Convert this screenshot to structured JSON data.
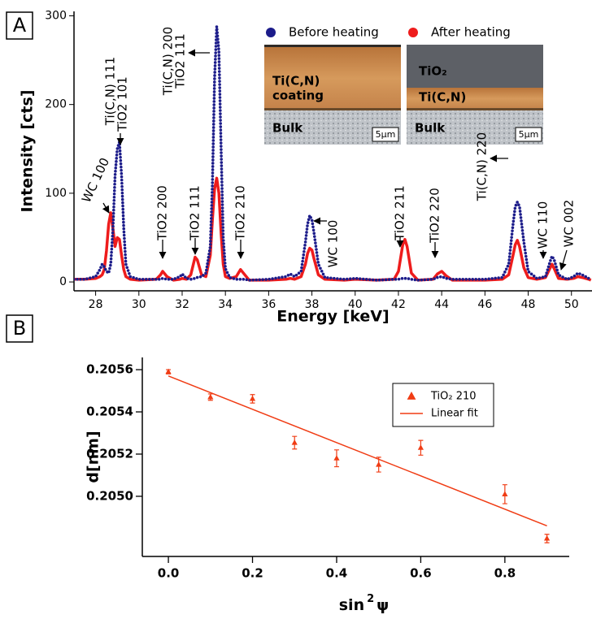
{
  "chart_data": [
    {
      "type": "line",
      "panel_label": "A",
      "xlabel": "Energy [keV]",
      "ylabel": "Intensity [cts]",
      "xlim": [
        27,
        50.95
      ],
      "ylim": [
        -10,
        305
      ],
      "xticks": [
        28,
        30,
        32,
        34,
        36,
        38,
        40,
        42,
        44,
        46,
        48,
        50
      ],
      "yticks": [
        0,
        100,
        200,
        300
      ],
      "legend": "top",
      "x": [
        27.0,
        27.5,
        28.0,
        28.2,
        28.3,
        28.4,
        28.5,
        28.6,
        28.7,
        28.8,
        28.9,
        29.0,
        29.1,
        29.2,
        29.3,
        29.4,
        29.6,
        30.0,
        30.8,
        31.0,
        31.1,
        31.3,
        31.6,
        31.9,
        32.0,
        32.2,
        32.4,
        32.6,
        32.7,
        32.9,
        33.1,
        33.3,
        33.4,
        33.5,
        33.6,
        33.7,
        33.8,
        33.9,
        34.0,
        34.2,
        34.5,
        34.7,
        34.9,
        35.1,
        36.0,
        36.8,
        37.0,
        37.2,
        37.5,
        37.7,
        37.8,
        37.9,
        38.0,
        38.1,
        38.3,
        38.6,
        39.5,
        40.0,
        41.0,
        41.8,
        42.0,
        42.2,
        42.3,
        42.4,
        42.6,
        42.9,
        43.6,
        43.8,
        44.0,
        44.2,
        44.5,
        46.0,
        46.8,
        47.1,
        47.3,
        47.4,
        47.5,
        47.6,
        47.8,
        48.0,
        48.4,
        48.8,
        49.0,
        49.1,
        49.2,
        49.4,
        49.8,
        50.1,
        50.3,
        50.5,
        50.8,
        50.9
      ],
      "series": [
        {
          "name": "Before heating",
          "color": "#1c1c8a",
          "style": "dots",
          "values": [
            3,
            3,
            6,
            14,
            20,
            17,
            12,
            10,
            20,
            60,
            120,
            150,
            158,
            120,
            60,
            20,
            6,
            3,
            3,
            3,
            4,
            3,
            3,
            6,
            9,
            4,
            3,
            4,
            5,
            6,
            10,
            40,
            110,
            230,
            288,
            260,
            150,
            50,
            15,
            5,
            3,
            3,
            3,
            2,
            3,
            6,
            9,
            6,
            12,
            45,
            65,
            75,
            70,
            55,
            20,
            5,
            3,
            4,
            2,
            3,
            3,
            4,
            4,
            4,
            3,
            2,
            3,
            5,
            6,
            4,
            3,
            3,
            5,
            20,
            65,
            85,
            90,
            85,
            45,
            12,
            4,
            6,
            22,
            29,
            25,
            8,
            3,
            6,
            10,
            8,
            4,
            3
          ]
        },
        {
          "name": "After heating",
          "color": "#ee1c1c",
          "style": "line",
          "values": [
            3,
            3,
            4,
            6,
            8,
            14,
            35,
            65,
            78,
            60,
            40,
            50,
            48,
            30,
            14,
            6,
            3,
            2,
            3,
            8,
            12,
            6,
            2,
            3,
            4,
            3,
            8,
            28,
            25,
            8,
            6,
            30,
            70,
            105,
            117,
            100,
            55,
            20,
            6,
            4,
            6,
            14,
            8,
            2,
            2,
            3,
            4,
            3,
            6,
            20,
            32,
            38,
            36,
            26,
            8,
            3,
            2,
            3,
            2,
            3,
            12,
            42,
            48,
            40,
            10,
            2,
            3,
            9,
            12,
            7,
            2,
            2,
            3,
            8,
            30,
            42,
            47,
            40,
            16,
            5,
            3,
            5,
            15,
            20,
            15,
            4,
            3,
            4,
            6,
            5,
            3,
            2
          ]
        }
      ],
      "annotations": [
        "WC 100",
        "Ti(C,N) 111",
        "TiO2 101",
        "TiO2 200",
        "TiO2 111",
        "Ti(C,N) 200",
        "TiO2 111",
        "TiO2 210",
        "WC 100",
        "TiO2 211",
        "TiO2 220",
        "Ti(C,N) 220",
        "WC 110",
        "WC 002"
      ],
      "insets": [
        {
          "labels": [
            "Ti(C,N)",
            "coating",
            "Bulk"
          ],
          "scale": "5µm"
        },
        {
          "labels": [
            "TiO₂",
            "Ti(C,N)",
            "Bulk"
          ],
          "scale": "5µm"
        }
      ]
    },
    {
      "type": "scatter",
      "panel_label": "B",
      "xlabel": [
        "sin",
        "2",
        "ψ"
      ],
      "ylabel": "d[nm]",
      "xlim": [
        -0.062,
        0.953
      ],
      "ylim": [
        0.204715,
        0.205658
      ],
      "xticks": [
        {
          "value": 0,
          "label": "0.0"
        },
        0.2,
        0.4,
        0.6,
        0.8
      ],
      "yticks": [
        {
          "value": 0.205,
          "label": "0.2050"
        },
        0.2052,
        0.2054,
        0.2056
      ],
      "legend": "upper right",
      "series": [
        {
          "name": "TiO₂ 210",
          "color": "#f03c14",
          "marker": "triangle",
          "x": [
            0,
            0.1,
            0.2,
            0.3,
            0.4,
            0.5,
            0.6,
            0.8,
            0.9
          ],
          "values": [
            0.20559,
            0.20547,
            0.205462,
            0.205254,
            0.20518,
            0.20515,
            0.20523,
            0.20501,
            0.2048
          ],
          "errors": [
            1e-05,
            1.5e-05,
            2e-05,
            3e-05,
            4e-05,
            3.5e-05,
            3.5e-05,
            4.5e-05,
            2e-05
          ]
        },
        {
          "name": "Linear fit",
          "color": "#f03c14",
          "type": "line",
          "x": [
            0,
            0.9
          ],
          "values": [
            0.20557,
            0.20486
          ]
        }
      ]
    }
  ]
}
